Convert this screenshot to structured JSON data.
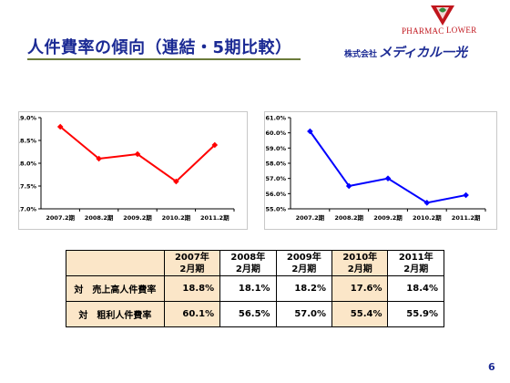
{
  "slide": {
    "title": "人件費率の傾向（連結・5期比較）",
    "page_number": "6"
  },
  "logo": {
    "pharmac": "PHARMAC",
    "flower": "LOWER",
    "company_prefix": "株式会社",
    "company_name": "メディカル一光"
  },
  "chart_data": [
    {
      "type": "line",
      "categories": [
        "2007.2期",
        "2008.2期",
        "2009.2期",
        "2010.2期",
        "2011.2期"
      ],
      "series": [
        {
          "values": [
            18.8,
            18.1,
            18.2,
            17.6,
            18.4
          ],
          "color": "#ff0000",
          "marker": "diamond"
        }
      ],
      "ylim": [
        17.0,
        19.0
      ],
      "yticks": [
        "17.0%",
        "17.5%",
        "18.0%",
        "18.5%",
        "19.0%"
      ],
      "grid": false,
      "legend": "none"
    },
    {
      "type": "line",
      "categories": [
        "2007.2期",
        "2008.2期",
        "2009.2期",
        "2010.2期",
        "2011.2期"
      ],
      "series": [
        {
          "values": [
            60.1,
            56.5,
            57.0,
            55.4,
            55.9
          ],
          "color": "#0000ff",
          "marker": "diamond"
        }
      ],
      "ylim": [
        55.0,
        61.0
      ],
      "yticks": [
        "55.0%",
        "56.0%",
        "57.0%",
        "58.0%",
        "59.0%",
        "60.0%",
        "61.0%"
      ],
      "grid": false,
      "legend": "none"
    }
  ],
  "table": {
    "headers": [
      {
        "year": "2007年",
        "period": "2月期"
      },
      {
        "year": "2008年",
        "period": "2月期"
      },
      {
        "year": "2009年",
        "period": "2月期"
      },
      {
        "year": "2010年",
        "period": "2月期"
      },
      {
        "year": "2011年",
        "period": "2月期"
      }
    ],
    "rows": [
      {
        "label": "対　売上高人件費率",
        "values": [
          "18.8%",
          "18.1%",
          "18.2%",
          "17.6%",
          "18.4%"
        ]
      },
      {
        "label": "対　粗利人件費率",
        "values": [
          "60.1%",
          "56.5%",
          "57.0%",
          "55.4%",
          "55.9%"
        ]
      }
    ]
  }
}
